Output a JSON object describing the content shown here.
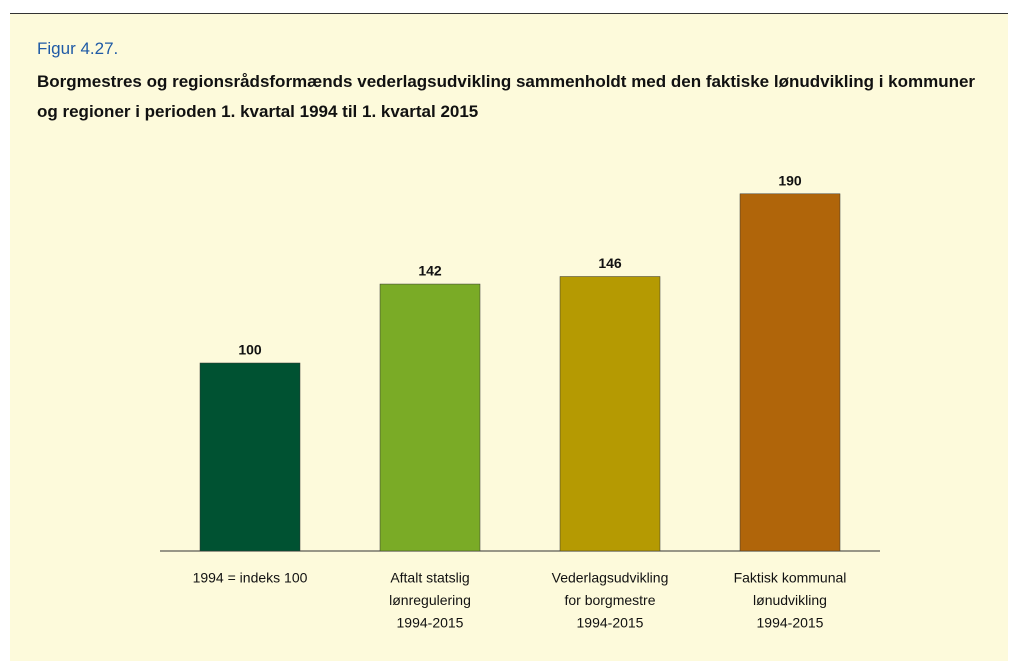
{
  "figure_label": "Figur 4.27.",
  "chart_data": {
    "type": "bar",
    "title": "Borgmestres og regionsrådsformænds vederlagsudvikling sammenholdt med den faktiske lønudvikling i kommuner og regioner i perioden 1. kvartal 1994 til 1. kvartal 2015",
    "categories": [
      [
        "1994 = indeks 100"
      ],
      [
        "Aftalt statslig",
        "lønregulering",
        "1994-2015"
      ],
      [
        "Vederlagsudvikling",
        "for borgmestre",
        "1994-2015"
      ],
      [
        "Faktisk kommunal",
        "lønudvikling",
        "1994-2015"
      ]
    ],
    "values": [
      100,
      142,
      146,
      190
    ],
    "colors": [
      "#005232",
      "#7aab26",
      "#b59a02",
      "#b0650a"
    ],
    "ylim": [
      0,
      200
    ]
  }
}
